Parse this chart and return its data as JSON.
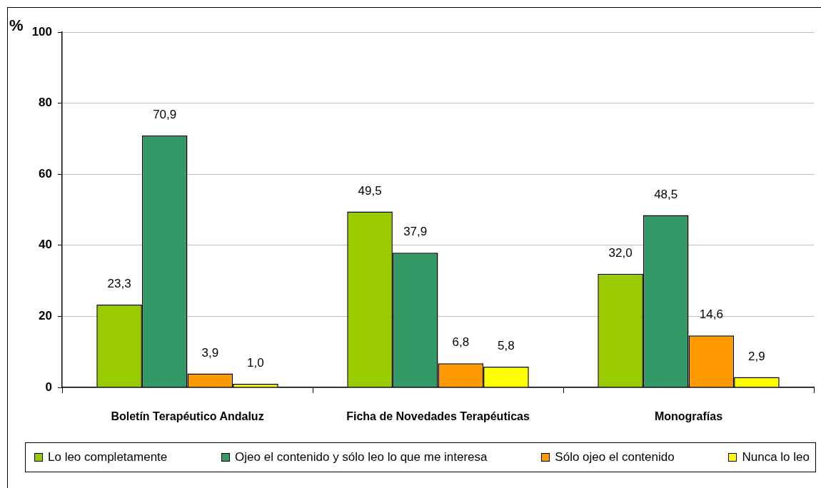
{
  "chart_data": {
    "type": "bar",
    "ylabel": "%",
    "categories": [
      "Boletín Terapéutico Andaluz",
      "Ficha de Novedades Terapéuticas",
      "Monografías"
    ],
    "series": [
      {
        "name": "Lo leo completamente",
        "color": "#99cc00",
        "values": [
          23.3,
          49.5,
          32.0
        ],
        "value_labels": [
          "23,3",
          "49,5",
          "32,0"
        ]
      },
      {
        "name": "Ojeo el contenido y sólo leo lo que me interesa",
        "color": "#339966",
        "values": [
          70.9,
          37.9,
          48.5
        ],
        "value_labels": [
          "70,9",
          "37,9",
          "48,5"
        ]
      },
      {
        "name": "Sólo ojeo el contenido",
        "color": "#ff9900",
        "values": [
          3.9,
          6.8,
          14.6
        ],
        "value_labels": [
          "3,9",
          "6,8",
          "14,6"
        ]
      },
      {
        "name": "Nunca lo leo",
        "color": "#ffff00",
        "values": [
          1.0,
          5.8,
          2.9
        ],
        "value_labels": [
          "1,0",
          "5,8",
          "2,9"
        ]
      }
    ],
    "ylim": [
      0,
      100
    ],
    "yticks": [
      0,
      20,
      40,
      60,
      80,
      100
    ],
    "grid": "y",
    "legend": "bottom"
  }
}
